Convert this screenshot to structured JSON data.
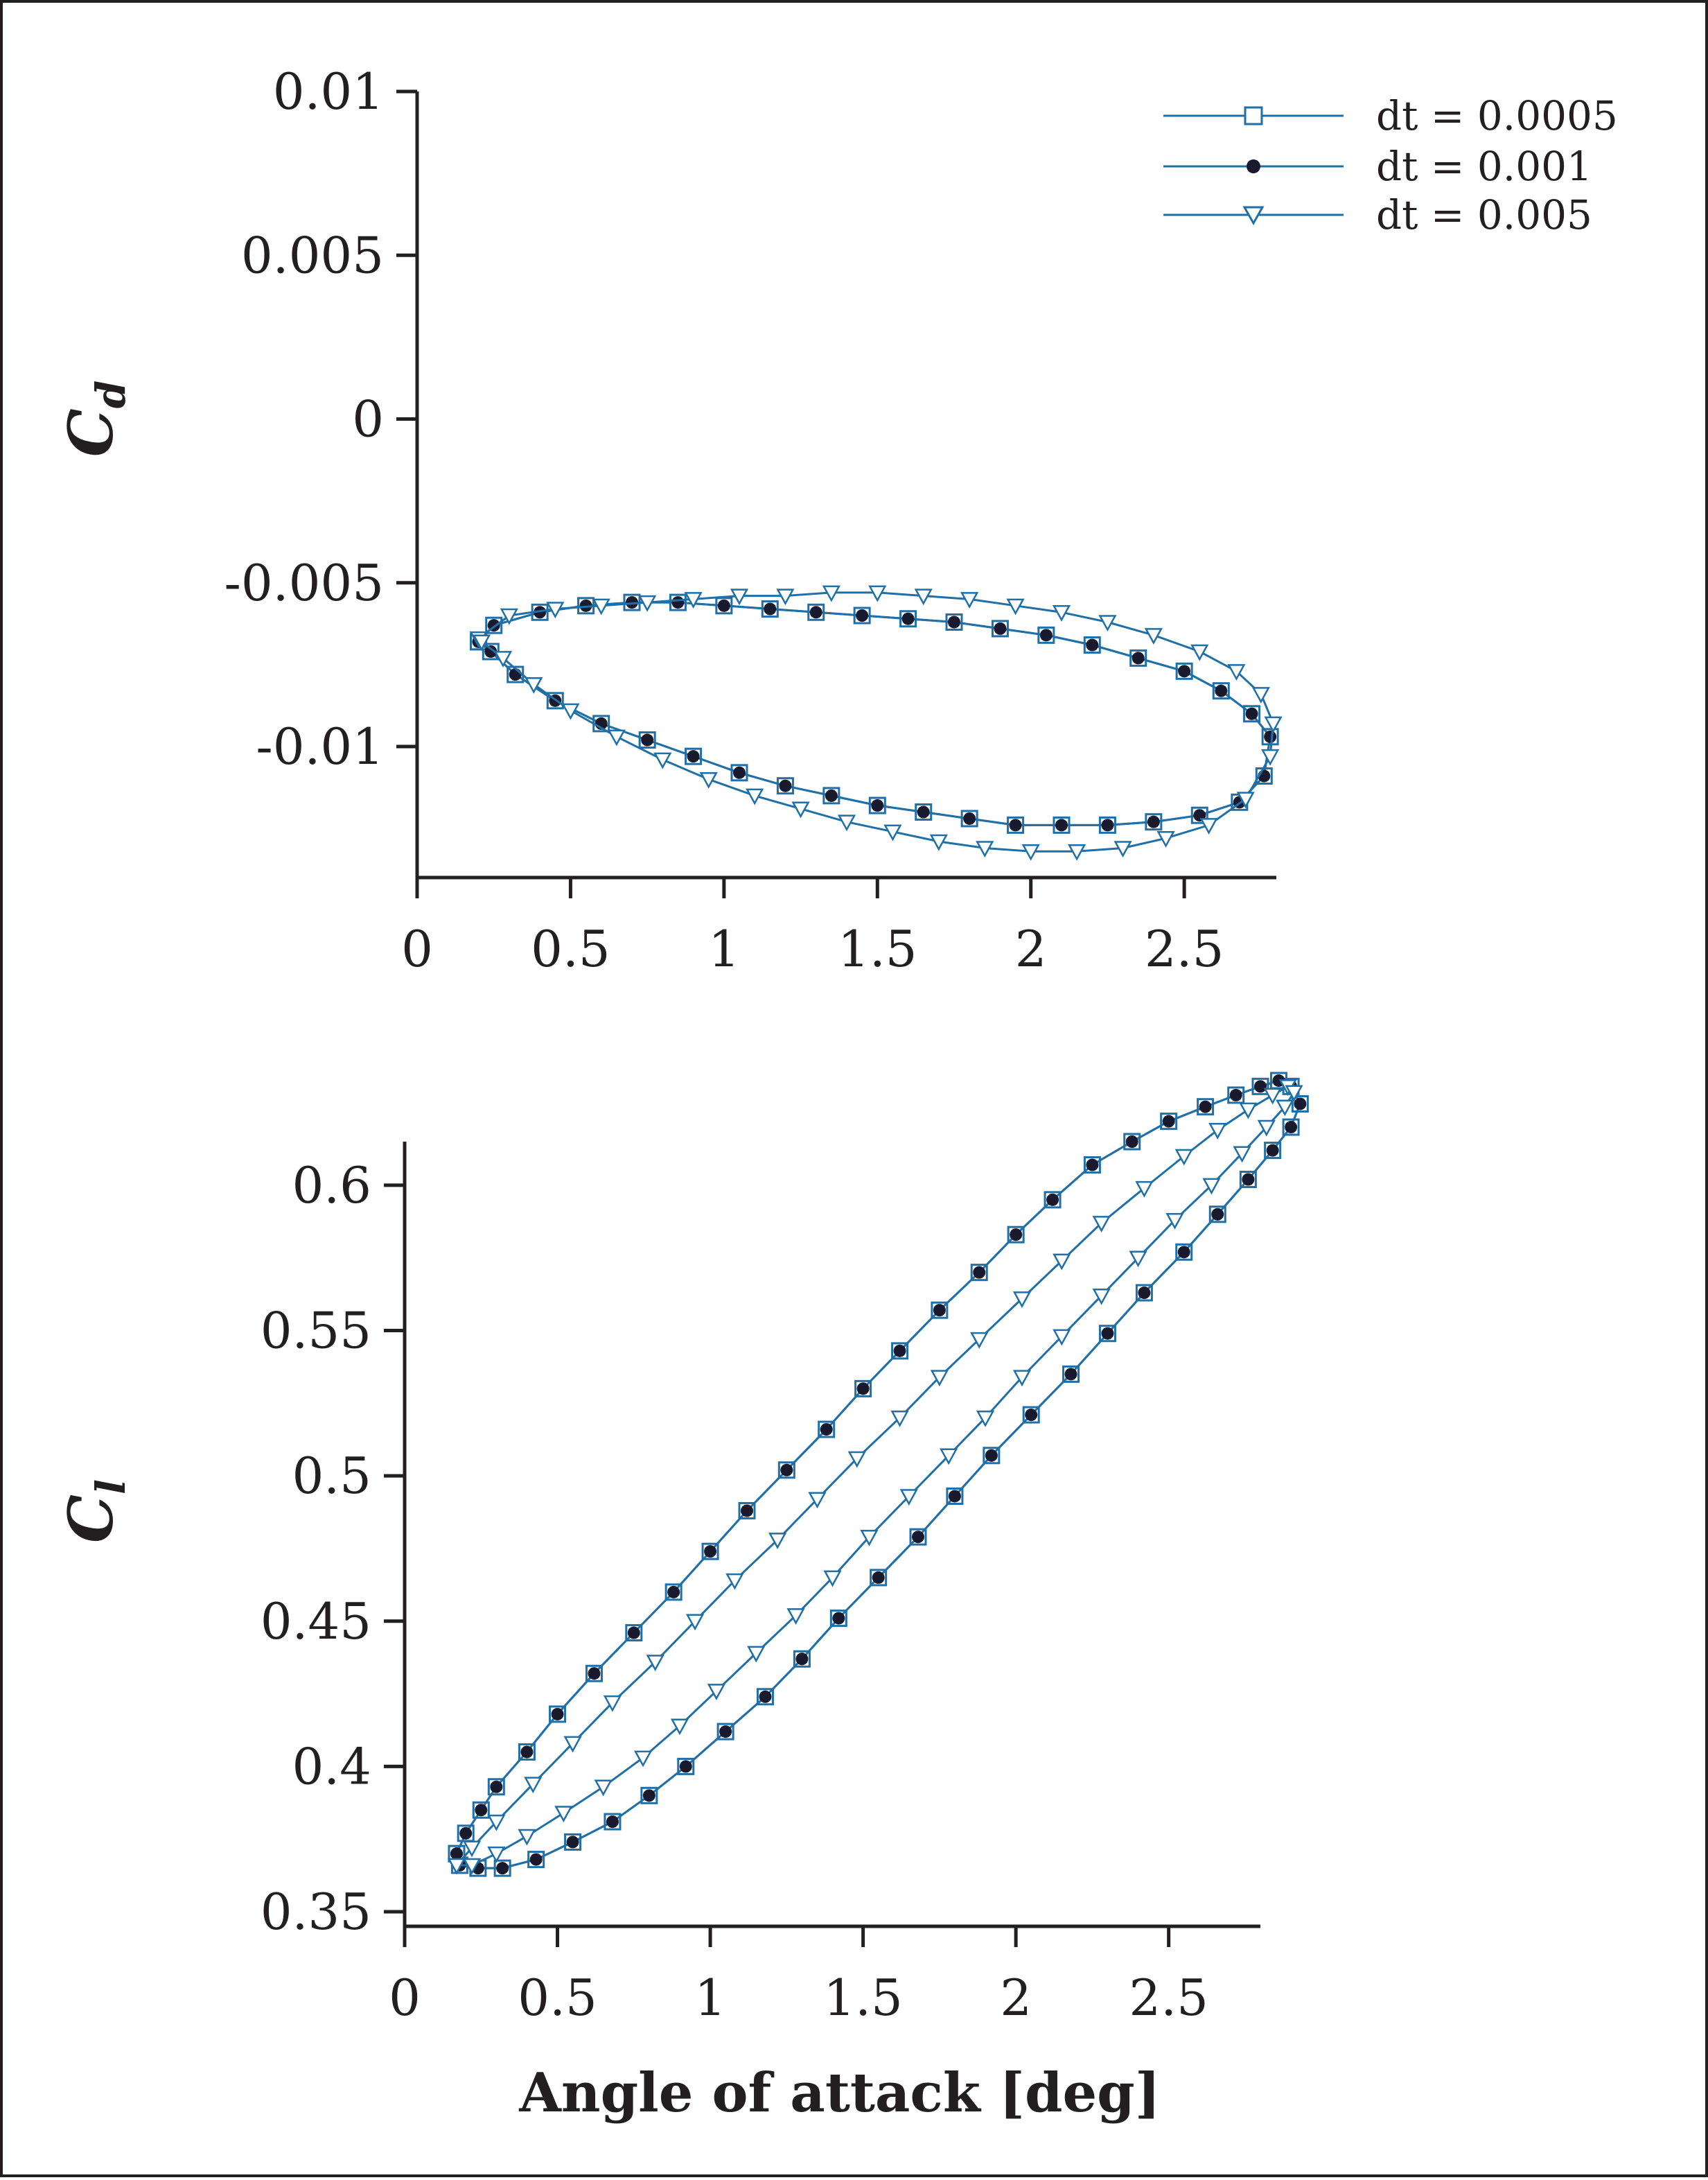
{
  "colors": {
    "series_line": "#1f6fa8",
    "marker_fill": "#1a1a2e",
    "axis": "#231f20"
  },
  "legend": [
    {
      "label": "dt = 0.0005",
      "marker": "square-open"
    },
    {
      "label": "dt = 0.001",
      "marker": "circle-filled"
    },
    {
      "label": "dt = 0.005",
      "marker": "triangle-down-open"
    }
  ],
  "chart_data": [
    {
      "type": "line",
      "ylabel_main": "C",
      "ylabel_sub": "d",
      "xlabel": "",
      "xlim": [
        0,
        2.8
      ],
      "ylim": [
        -0.014,
        0.01
      ],
      "xticks": [
        "0",
        "0.5",
        "1",
        "1.5",
        "2",
        "2.5"
      ],
      "xtick_values": [
        0,
        0.5,
        1,
        1.5,
        2,
        2.5
      ],
      "yticks": [
        "0.01",
        "0.005",
        "0",
        "-0.005",
        "-0.01"
      ],
      "ytick_values": [
        0.01,
        0.005,
        0,
        -0.005,
        -0.01
      ],
      "series": [
        {
          "name": "dt = 0.0005",
          "marker": "square-open",
          "x": [
            0.2,
            0.25,
            0.4,
            0.55,
            0.7,
            0.85,
            1.0,
            1.15,
            1.3,
            1.45,
            1.6,
            1.75,
            1.9,
            2.05,
            2.2,
            2.35,
            2.5,
            2.62,
            2.72,
            2.78,
            2.76,
            2.68,
            2.55,
            2.4,
            2.25,
            2.1,
            1.95,
            1.8,
            1.65,
            1.5,
            1.35,
            1.2,
            1.05,
            0.9,
            0.75,
            0.6,
            0.45,
            0.32,
            0.24,
            0.2
          ],
          "y": [
            -0.0068,
            -0.0063,
            -0.0059,
            -0.0057,
            -0.0056,
            -0.0056,
            -0.0057,
            -0.0058,
            -0.0059,
            -0.006,
            -0.0061,
            -0.0062,
            -0.0064,
            -0.0066,
            -0.0069,
            -0.0073,
            -0.0077,
            -0.0083,
            -0.009,
            -0.0097,
            -0.0109,
            -0.0117,
            -0.0121,
            -0.0123,
            -0.0124,
            -0.0124,
            -0.0124,
            -0.0122,
            -0.012,
            -0.0118,
            -0.0115,
            -0.0112,
            -0.0108,
            -0.0103,
            -0.0098,
            -0.0093,
            -0.0086,
            -0.0078,
            -0.0071,
            -0.0068
          ]
        },
        {
          "name": "dt = 0.001",
          "marker": "circle-filled",
          "x": [
            0.2,
            0.25,
            0.4,
            0.55,
            0.7,
            0.85,
            1.0,
            1.15,
            1.3,
            1.45,
            1.6,
            1.75,
            1.9,
            2.05,
            2.2,
            2.35,
            2.5,
            2.62,
            2.72,
            2.78,
            2.76,
            2.68,
            2.55,
            2.4,
            2.25,
            2.1,
            1.95,
            1.8,
            1.65,
            1.5,
            1.35,
            1.2,
            1.05,
            0.9,
            0.75,
            0.6,
            0.45,
            0.32,
            0.24,
            0.2
          ],
          "y": [
            -0.0068,
            -0.0063,
            -0.0059,
            -0.0057,
            -0.0056,
            -0.0056,
            -0.0057,
            -0.0058,
            -0.0059,
            -0.006,
            -0.0061,
            -0.0062,
            -0.0064,
            -0.0066,
            -0.0069,
            -0.0073,
            -0.0077,
            -0.0083,
            -0.009,
            -0.0097,
            -0.0109,
            -0.0117,
            -0.0121,
            -0.0123,
            -0.0124,
            -0.0124,
            -0.0124,
            -0.0122,
            -0.012,
            -0.0118,
            -0.0115,
            -0.0112,
            -0.0108,
            -0.0103,
            -0.0098,
            -0.0093,
            -0.0086,
            -0.0078,
            -0.0071,
            -0.0068
          ]
        },
        {
          "name": "dt = 0.005",
          "marker": "triangle-down-open",
          "x": [
            0.2,
            0.3,
            0.45,
            0.6,
            0.75,
            0.9,
            1.05,
            1.2,
            1.35,
            1.5,
            1.65,
            1.8,
            1.95,
            2.1,
            2.25,
            2.4,
            2.55,
            2.67,
            2.75,
            2.79,
            2.78,
            2.7,
            2.58,
            2.44,
            2.3,
            2.15,
            2.0,
            1.85,
            1.7,
            1.55,
            1.4,
            1.25,
            1.1,
            0.95,
            0.8,
            0.65,
            0.5,
            0.38,
            0.28,
            0.21
          ],
          "y": [
            -0.0067,
            -0.006,
            -0.0058,
            -0.0057,
            -0.0056,
            -0.0055,
            -0.0054,
            -0.0054,
            -0.0053,
            -0.0053,
            -0.0054,
            -0.0055,
            -0.0057,
            -0.0059,
            -0.0062,
            -0.0066,
            -0.0071,
            -0.0077,
            -0.0084,
            -0.0093,
            -0.0103,
            -0.0116,
            -0.0124,
            -0.0128,
            -0.0131,
            -0.0132,
            -0.0132,
            -0.0131,
            -0.0129,
            -0.0126,
            -0.0123,
            -0.0119,
            -0.0115,
            -0.011,
            -0.0104,
            -0.0097,
            -0.0089,
            -0.0081,
            -0.0073,
            -0.0068
          ]
        }
      ]
    },
    {
      "type": "line",
      "ylabel_main": "C",
      "ylabel_sub": "l",
      "xlabel": "Angle of attack [deg]",
      "xlim": [
        0,
        2.8
      ],
      "ylim": [
        0.345,
        0.615
      ],
      "xticks": [
        "0",
        "0.5",
        "1",
        "1.5",
        "2",
        "2.5"
      ],
      "xtick_values": [
        0,
        0.5,
        1,
        1.5,
        2,
        2.5
      ],
      "yticks": [
        "0.6",
        "0.55",
        "0.5",
        "0.45",
        "0.4",
        "0.35"
      ],
      "ytick_values": [
        0.6,
        0.55,
        0.5,
        0.45,
        0.4,
        0.35
      ],
      "series": [
        {
          "name": "dt = 0.0005",
          "marker": "square-open",
          "x": [
            0.17,
            0.2,
            0.25,
            0.3,
            0.4,
            0.5,
            0.62,
            0.75,
            0.88,
            1.0,
            1.12,
            1.25,
            1.38,
            1.5,
            1.62,
            1.75,
            1.88,
            2.0,
            2.12,
            2.25,
            2.38,
            2.5,
            2.62,
            2.72,
            2.8,
            2.86,
            2.9,
            2.93,
            2.9,
            2.84,
            2.76,
            2.66,
            2.55,
            2.42,
            2.3,
            2.18,
            2.05,
            1.92,
            1.8,
            1.68,
            1.55,
            1.42,
            1.3,
            1.18,
            1.05,
            0.92,
            0.8,
            0.68,
            0.55,
            0.43,
            0.32,
            0.24,
            0.18,
            0.17
          ],
          "y": [
            0.37,
            0.377,
            0.385,
            0.393,
            0.405,
            0.418,
            0.432,
            0.446,
            0.46,
            0.474,
            0.488,
            0.502,
            0.516,
            0.53,
            0.543,
            0.557,
            0.57,
            0.583,
            0.595,
            0.607,
            0.615,
            0.622,
            0.627,
            0.631,
            0.634,
            0.636,
            0.634,
            0.628,
            0.62,
            0.612,
            0.602,
            0.59,
            0.577,
            0.563,
            0.549,
            0.535,
            0.521,
            0.507,
            0.493,
            0.479,
            0.465,
            0.451,
            0.437,
            0.424,
            0.412,
            0.4,
            0.39,
            0.381,
            0.374,
            0.368,
            0.365,
            0.365,
            0.366,
            0.37
          ]
        },
        {
          "name": "dt = 0.001",
          "marker": "circle-filled",
          "x": [
            0.17,
            0.2,
            0.25,
            0.3,
            0.4,
            0.5,
            0.62,
            0.75,
            0.88,
            1.0,
            1.12,
            1.25,
            1.38,
            1.5,
            1.62,
            1.75,
            1.88,
            2.0,
            2.12,
            2.25,
            2.38,
            2.5,
            2.62,
            2.72,
            2.8,
            2.86,
            2.9,
            2.93,
            2.9,
            2.84,
            2.76,
            2.66,
            2.55,
            2.42,
            2.3,
            2.18,
            2.05,
            1.92,
            1.8,
            1.68,
            1.55,
            1.42,
            1.3,
            1.18,
            1.05,
            0.92,
            0.8,
            0.68,
            0.55,
            0.43,
            0.32,
            0.24,
            0.18,
            0.17
          ],
          "y": [
            0.37,
            0.377,
            0.385,
            0.393,
            0.405,
            0.418,
            0.432,
            0.446,
            0.46,
            0.474,
            0.488,
            0.502,
            0.516,
            0.53,
            0.543,
            0.557,
            0.57,
            0.583,
            0.595,
            0.607,
            0.615,
            0.622,
            0.627,
            0.631,
            0.634,
            0.636,
            0.634,
            0.628,
            0.62,
            0.612,
            0.602,
            0.59,
            0.577,
            0.563,
            0.549,
            0.535,
            0.521,
            0.507,
            0.493,
            0.479,
            0.465,
            0.451,
            0.437,
            0.424,
            0.412,
            0.4,
            0.39,
            0.381,
            0.374,
            0.368,
            0.365,
            0.365,
            0.366,
            0.37
          ]
        },
        {
          "name": "dt = 0.005",
          "marker": "triangle-down-open",
          "x": [
            0.17,
            0.22,
            0.3,
            0.42,
            0.55,
            0.68,
            0.82,
            0.95,
            1.08,
            1.22,
            1.35,
            1.48,
            1.62,
            1.75,
            1.88,
            2.02,
            2.15,
            2.28,
            2.42,
            2.55,
            2.66,
            2.76,
            2.84,
            2.89,
            2.91,
            2.88,
            2.82,
            2.74,
            2.64,
            2.52,
            2.4,
            2.28,
            2.15,
            2.02,
            1.9,
            1.78,
            1.65,
            1.52,
            1.4,
            1.28,
            1.15,
            1.02,
            0.9,
            0.78,
            0.65,
            0.52,
            0.4,
            0.3,
            0.22,
            0.17
          ],
          "y": [
            0.366,
            0.372,
            0.381,
            0.394,
            0.408,
            0.422,
            0.436,
            0.45,
            0.464,
            0.478,
            0.492,
            0.506,
            0.52,
            0.534,
            0.547,
            0.561,
            0.574,
            0.587,
            0.599,
            0.61,
            0.619,
            0.626,
            0.631,
            0.634,
            0.632,
            0.627,
            0.62,
            0.611,
            0.6,
            0.588,
            0.575,
            0.562,
            0.548,
            0.534,
            0.52,
            0.507,
            0.493,
            0.479,
            0.465,
            0.452,
            0.439,
            0.426,
            0.414,
            0.403,
            0.393,
            0.384,
            0.376,
            0.37,
            0.366,
            0.366
          ]
        }
      ]
    }
  ]
}
